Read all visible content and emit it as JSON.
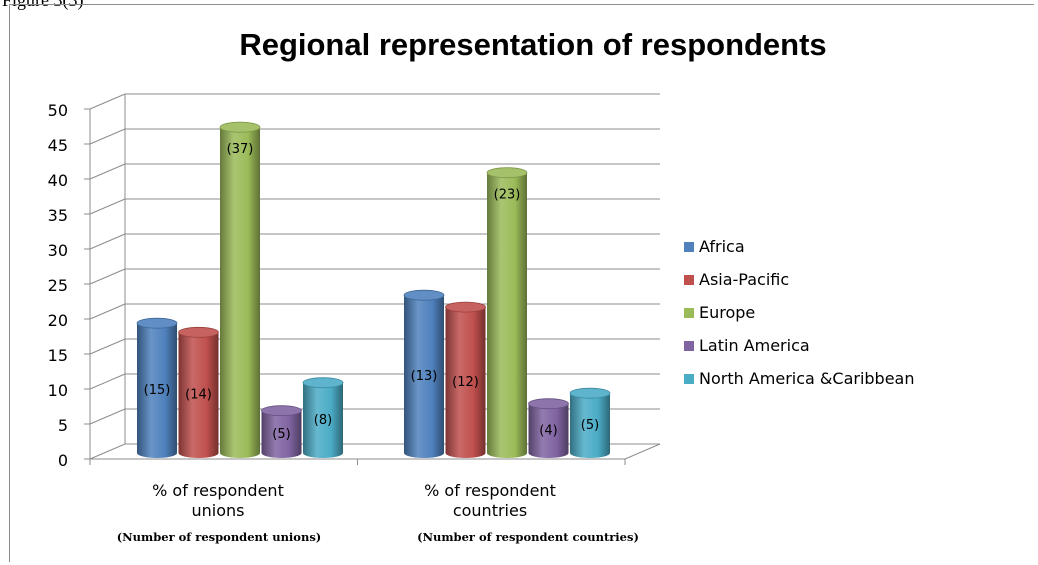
{
  "caption": "Figure 3(3)",
  "chart_data": {
    "type": "bar",
    "title": "Regional representation of respondents",
    "categories": [
      "% of respondent unions",
      "% of respondent countries"
    ],
    "category_lines": [
      [
        "% of respondent",
        "unions"
      ],
      [
        "% of respondent",
        "countries"
      ]
    ],
    "category_sublabels": [
      "(Number of respondent unions)",
      "(Number of respondent countries)"
    ],
    "ylim": [
      0,
      50
    ],
    "yticks": [
      0,
      5,
      10,
      15,
      20,
      25,
      30,
      35,
      40,
      45,
      50
    ],
    "grid": true,
    "legend": "right",
    "series": [
      {
        "name": "Africa",
        "values": [
          18.5,
          22.5
        ],
        "labels": [
          "(15)",
          "(13)"
        ],
        "color": "#4f81bd"
      },
      {
        "name": "Asia-Pacific",
        "values": [
          17.2,
          20.8
        ],
        "labels": [
          "(14)",
          "(12)"
        ],
        "color": "#c0504d"
      },
      {
        "name": "Europe",
        "values": [
          46.5,
          40
        ],
        "labels": [
          "(37)",
          "(23)"
        ],
        "color": "#9bbb59"
      },
      {
        "name": "Latin America",
        "values": [
          6,
          7
        ],
        "labels": [
          "(5)",
          "(4)"
        ],
        "color": "#8064a2"
      },
      {
        "name": "North America &Caribbean",
        "values": [
          10,
          8.5
        ],
        "labels": [
          "(8)",
          "(5)"
        ],
        "color": "#4bacc6"
      }
    ]
  }
}
